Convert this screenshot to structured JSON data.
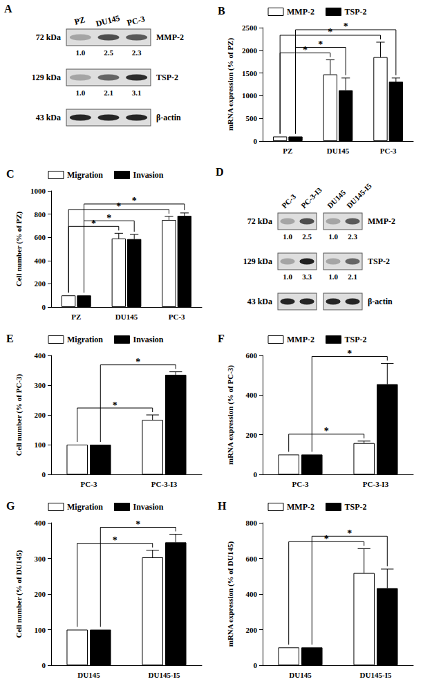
{
  "chart_data": [
    {
      "type": "blot",
      "label": "A",
      "bands": [
        {
          "size": "72 kDa",
          "protein": "MMP-2"
        },
        {
          "size": "129 kDa",
          "protein": "TSP-2"
        },
        {
          "size": "43 kDa",
          "protein": "β-actin"
        }
      ],
      "groups": [
        {
          "lanes": [
            "PZ",
            "DU145",
            "PC-3"
          ],
          "values": [
            [
              1.0,
              2.5,
              2.3
            ],
            [
              1.0,
              2.1,
              3.1
            ],
            null
          ],
          "value_labels": [
            [
              "1.0",
              "2.5",
              "2.3"
            ],
            [
              "1.0",
              "2.1",
              "3.1"
            ],
            null
          ]
        }
      ]
    },
    {
      "type": "bar",
      "label": "B",
      "y_label": "mRNA expression (% of PZ)",
      "categories": [
        "PZ",
        "DU145",
        "PC-3"
      ],
      "series": [
        {
          "name": "MMP-2",
          "color": "#ffffff",
          "values": [
            100,
            1470,
            1850
          ],
          "errors": [
            0,
            320,
            330
          ]
        },
        {
          "name": "TSP-2",
          "color": "#000000",
          "values": [
            100,
            1120,
            1310
          ],
          "errors": [
            0,
            270,
            80
          ]
        }
      ],
      "ylim": [
        0,
        2500
      ],
      "yticks": [
        0,
        500,
        1000,
        1500,
        2000,
        2500
      ],
      "grid": false,
      "legend": "top",
      "significance": [
        {
          "series": "MMP-2",
          "from": "PZ",
          "to": "DU145",
          "label": "*"
        },
        {
          "series": "TSP-2",
          "from": "PZ",
          "to": "DU145",
          "label": "*"
        },
        {
          "series": "MMP-2",
          "from": "PZ",
          "to": "PC-3",
          "label": "*"
        },
        {
          "series": "TSP-2",
          "from": "PZ",
          "to": "PC-3",
          "label": "*"
        }
      ]
    },
    {
      "type": "bar",
      "label": "C",
      "y_label": "Cell number (% of PZ)",
      "categories": [
        "PZ",
        "DU145",
        "PC-3"
      ],
      "series": [
        {
          "name": "Migration",
          "color": "#ffffff",
          "values": [
            100,
            590,
            750
          ],
          "errors": [
            0,
            45,
            30
          ]
        },
        {
          "name": "Invasion",
          "color": "#000000",
          "values": [
            100,
            585,
            785
          ],
          "errors": [
            0,
            40,
            25
          ]
        }
      ],
      "ylim": [
        0,
        1000
      ],
      "yticks": [
        0,
        200,
        400,
        600,
        800,
        1000
      ],
      "grid": false,
      "legend": "top",
      "significance": [
        {
          "series": "Migration",
          "from": "PZ",
          "to": "DU145",
          "label": "*"
        },
        {
          "series": "Invasion",
          "from": "PZ",
          "to": "DU145",
          "label": "*"
        },
        {
          "series": "Migration",
          "from": "PZ",
          "to": "PC-3",
          "label": "*"
        },
        {
          "series": "Invasion",
          "from": "PZ",
          "to": "PC-3",
          "label": "*"
        }
      ]
    },
    {
      "type": "blot",
      "label": "D",
      "bands": [
        {
          "size": "72 kDa",
          "protein": "MMP-2"
        },
        {
          "size": "129 kDa",
          "protein": "TSP-2"
        },
        {
          "size": "43 kDa",
          "protein": "β-actin"
        }
      ],
      "groups": [
        {
          "lanes": [
            "PC-3",
            "PC-3-I3"
          ],
          "values": [
            [
              1.0,
              2.5
            ],
            [
              1.0,
              3.3
            ],
            null
          ],
          "value_labels": [
            [
              "1.0",
              "2.5"
            ],
            [
              "1.0",
              "3.3"
            ],
            null
          ]
        },
        {
          "lanes": [
            "DU145",
            "DU145-I5"
          ],
          "values": [
            [
              1.0,
              2.3
            ],
            [
              1.0,
              2.1
            ],
            null
          ],
          "value_labels": [
            [
              "1.0",
              "2.3"
            ],
            [
              "1.0",
              "2.1"
            ],
            null
          ]
        }
      ]
    },
    {
      "type": "bar",
      "label": "E",
      "y_label": "Cell number (% of PC-3)",
      "categories": [
        "PC-3",
        "PC-3-I3"
      ],
      "series": [
        {
          "name": "Migration",
          "color": "#ffffff",
          "values": [
            100,
            183
          ],
          "errors": [
            0,
            17
          ]
        },
        {
          "name": "Invasion",
          "color": "#000000",
          "values": [
            100,
            335
          ],
          "errors": [
            0,
            10
          ]
        }
      ],
      "ylim": [
        0,
        400
      ],
      "yticks": [
        0,
        100,
        200,
        300,
        400
      ],
      "grid": false,
      "legend": "top",
      "significance": [
        {
          "series": "Migration",
          "from": "PC-3",
          "to": "PC-3-I3",
          "label": "*"
        },
        {
          "series": "Invasion",
          "from": "PC-3",
          "to": "PC-3-I3",
          "label": "*"
        }
      ]
    },
    {
      "type": "bar",
      "label": "F",
      "y_label": "mRNA expression (% of PC-3)",
      "categories": [
        "PC-3",
        "PC-3-I3"
      ],
      "series": [
        {
          "name": "MMP-2",
          "color": "#ffffff",
          "values": [
            100,
            158
          ],
          "errors": [
            0,
            10
          ]
        },
        {
          "name": "TSP-2",
          "color": "#000000",
          "values": [
            100,
            455
          ],
          "errors": [
            0,
            105
          ]
        }
      ],
      "ylim": [
        0,
        600
      ],
      "yticks": [
        0,
        200,
        400,
        600
      ],
      "grid": false,
      "legend": "top",
      "significance": [
        {
          "series": "MMP-2",
          "from": "PC-3",
          "to": "PC-3-I3",
          "label": "*"
        },
        {
          "series": "TSP-2",
          "from": "PC-3",
          "to": "PC-3-I3",
          "label": "*"
        }
      ]
    },
    {
      "type": "bar",
      "label": "G",
      "y_label": "Cell number (% of DU145)",
      "categories": [
        "DU145",
        "DU145-I5"
      ],
      "series": [
        {
          "name": "Migration",
          "color": "#ffffff",
          "values": [
            100,
            303
          ],
          "errors": [
            0,
            20
          ]
        },
        {
          "name": "Invasion",
          "color": "#000000",
          "values": [
            100,
            345
          ],
          "errors": [
            0,
            23
          ]
        }
      ],
      "ylim": [
        0,
        400
      ],
      "yticks": [
        0,
        100,
        200,
        300,
        400
      ],
      "grid": false,
      "legend": "top",
      "significance": [
        {
          "series": "Migration",
          "from": "DU145",
          "to": "DU145-I5",
          "label": "*"
        },
        {
          "series": "Invasion",
          "from": "DU145",
          "to": "DU145-I5",
          "label": "*"
        }
      ]
    },
    {
      "type": "bar",
      "label": "H",
      "y_label": "mRNA expression (% of DU145)",
      "categories": [
        "DU145",
        "DU145-I5"
      ],
      "series": [
        {
          "name": "MMP-2",
          "color": "#ffffff",
          "values": [
            100,
            518
          ],
          "errors": [
            0,
            137
          ]
        },
        {
          "name": "TSP-2",
          "color": "#000000",
          "values": [
            100,
            433
          ],
          "errors": [
            0,
            107
          ]
        }
      ],
      "ylim": [
        0,
        800
      ],
      "yticks": [
        0,
        200,
        400,
        600,
        800
      ],
      "grid": false,
      "legend": "top",
      "significance": [
        {
          "series": "MMP-2",
          "from": "DU145",
          "to": "DU145-I5",
          "label": "*"
        },
        {
          "series": "TSP-2",
          "from": "DU145",
          "to": "DU145-I5",
          "label": "*"
        }
      ]
    }
  ]
}
